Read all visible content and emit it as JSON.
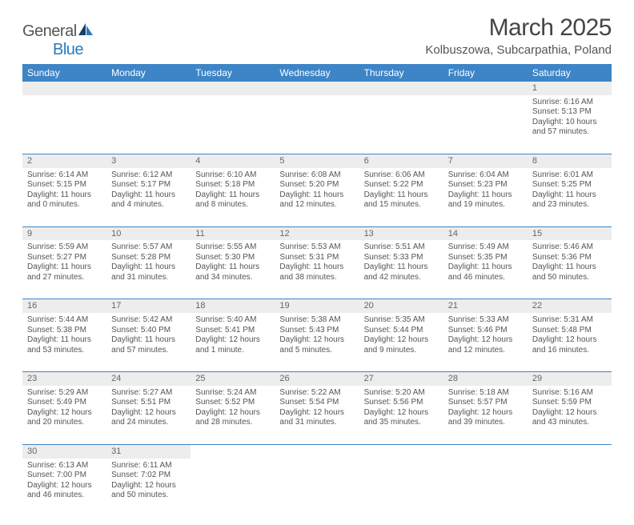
{
  "logo": {
    "text1": "General",
    "text2": "Blue"
  },
  "title": "March 2025",
  "location": "Kolbuszowa, Subcarpathia, Poland",
  "colors": {
    "header_bg": "#3d85c6",
    "header_text": "#ffffff",
    "daynum_bg": "#ededed",
    "border": "#3d85c6",
    "body_text": "#555555",
    "logo_gray": "#555555",
    "logo_blue": "#2a7abf"
  },
  "weekdays": [
    "Sunday",
    "Monday",
    "Tuesday",
    "Wednesday",
    "Thursday",
    "Friday",
    "Saturday"
  ],
  "weeks": [
    [
      null,
      null,
      null,
      null,
      null,
      null,
      {
        "d": "1",
        "sr": "Sunrise: 6:16 AM",
        "ss": "Sunset: 5:13 PM",
        "dl": "Daylight: 10 hours and 57 minutes."
      }
    ],
    [
      {
        "d": "2",
        "sr": "Sunrise: 6:14 AM",
        "ss": "Sunset: 5:15 PM",
        "dl": "Daylight: 11 hours and 0 minutes."
      },
      {
        "d": "3",
        "sr": "Sunrise: 6:12 AM",
        "ss": "Sunset: 5:17 PM",
        "dl": "Daylight: 11 hours and 4 minutes."
      },
      {
        "d": "4",
        "sr": "Sunrise: 6:10 AM",
        "ss": "Sunset: 5:18 PM",
        "dl": "Daylight: 11 hours and 8 minutes."
      },
      {
        "d": "5",
        "sr": "Sunrise: 6:08 AM",
        "ss": "Sunset: 5:20 PM",
        "dl": "Daylight: 11 hours and 12 minutes."
      },
      {
        "d": "6",
        "sr": "Sunrise: 6:06 AM",
        "ss": "Sunset: 5:22 PM",
        "dl": "Daylight: 11 hours and 15 minutes."
      },
      {
        "d": "7",
        "sr": "Sunrise: 6:04 AM",
        "ss": "Sunset: 5:23 PM",
        "dl": "Daylight: 11 hours and 19 minutes."
      },
      {
        "d": "8",
        "sr": "Sunrise: 6:01 AM",
        "ss": "Sunset: 5:25 PM",
        "dl": "Daylight: 11 hours and 23 minutes."
      }
    ],
    [
      {
        "d": "9",
        "sr": "Sunrise: 5:59 AM",
        "ss": "Sunset: 5:27 PM",
        "dl": "Daylight: 11 hours and 27 minutes."
      },
      {
        "d": "10",
        "sr": "Sunrise: 5:57 AM",
        "ss": "Sunset: 5:28 PM",
        "dl": "Daylight: 11 hours and 31 minutes."
      },
      {
        "d": "11",
        "sr": "Sunrise: 5:55 AM",
        "ss": "Sunset: 5:30 PM",
        "dl": "Daylight: 11 hours and 34 minutes."
      },
      {
        "d": "12",
        "sr": "Sunrise: 5:53 AM",
        "ss": "Sunset: 5:31 PM",
        "dl": "Daylight: 11 hours and 38 minutes."
      },
      {
        "d": "13",
        "sr": "Sunrise: 5:51 AM",
        "ss": "Sunset: 5:33 PM",
        "dl": "Daylight: 11 hours and 42 minutes."
      },
      {
        "d": "14",
        "sr": "Sunrise: 5:49 AM",
        "ss": "Sunset: 5:35 PM",
        "dl": "Daylight: 11 hours and 46 minutes."
      },
      {
        "d": "15",
        "sr": "Sunrise: 5:46 AM",
        "ss": "Sunset: 5:36 PM",
        "dl": "Daylight: 11 hours and 50 minutes."
      }
    ],
    [
      {
        "d": "16",
        "sr": "Sunrise: 5:44 AM",
        "ss": "Sunset: 5:38 PM",
        "dl": "Daylight: 11 hours and 53 minutes."
      },
      {
        "d": "17",
        "sr": "Sunrise: 5:42 AM",
        "ss": "Sunset: 5:40 PM",
        "dl": "Daylight: 11 hours and 57 minutes."
      },
      {
        "d": "18",
        "sr": "Sunrise: 5:40 AM",
        "ss": "Sunset: 5:41 PM",
        "dl": "Daylight: 12 hours and 1 minute."
      },
      {
        "d": "19",
        "sr": "Sunrise: 5:38 AM",
        "ss": "Sunset: 5:43 PM",
        "dl": "Daylight: 12 hours and 5 minutes."
      },
      {
        "d": "20",
        "sr": "Sunrise: 5:35 AM",
        "ss": "Sunset: 5:44 PM",
        "dl": "Daylight: 12 hours and 9 minutes."
      },
      {
        "d": "21",
        "sr": "Sunrise: 5:33 AM",
        "ss": "Sunset: 5:46 PM",
        "dl": "Daylight: 12 hours and 12 minutes."
      },
      {
        "d": "22",
        "sr": "Sunrise: 5:31 AM",
        "ss": "Sunset: 5:48 PM",
        "dl": "Daylight: 12 hours and 16 minutes."
      }
    ],
    [
      {
        "d": "23",
        "sr": "Sunrise: 5:29 AM",
        "ss": "Sunset: 5:49 PM",
        "dl": "Daylight: 12 hours and 20 minutes."
      },
      {
        "d": "24",
        "sr": "Sunrise: 5:27 AM",
        "ss": "Sunset: 5:51 PM",
        "dl": "Daylight: 12 hours and 24 minutes."
      },
      {
        "d": "25",
        "sr": "Sunrise: 5:24 AM",
        "ss": "Sunset: 5:52 PM",
        "dl": "Daylight: 12 hours and 28 minutes."
      },
      {
        "d": "26",
        "sr": "Sunrise: 5:22 AM",
        "ss": "Sunset: 5:54 PM",
        "dl": "Daylight: 12 hours and 31 minutes."
      },
      {
        "d": "27",
        "sr": "Sunrise: 5:20 AM",
        "ss": "Sunset: 5:56 PM",
        "dl": "Daylight: 12 hours and 35 minutes."
      },
      {
        "d": "28",
        "sr": "Sunrise: 5:18 AM",
        "ss": "Sunset: 5:57 PM",
        "dl": "Daylight: 12 hours and 39 minutes."
      },
      {
        "d": "29",
        "sr": "Sunrise: 5:16 AM",
        "ss": "Sunset: 5:59 PM",
        "dl": "Daylight: 12 hours and 43 minutes."
      }
    ],
    [
      {
        "d": "30",
        "sr": "Sunrise: 6:13 AM",
        "ss": "Sunset: 7:00 PM",
        "dl": "Daylight: 12 hours and 46 minutes."
      },
      {
        "d": "31",
        "sr": "Sunrise: 6:11 AM",
        "ss": "Sunset: 7:02 PM",
        "dl": "Daylight: 12 hours and 50 minutes."
      },
      null,
      null,
      null,
      null,
      null
    ]
  ]
}
